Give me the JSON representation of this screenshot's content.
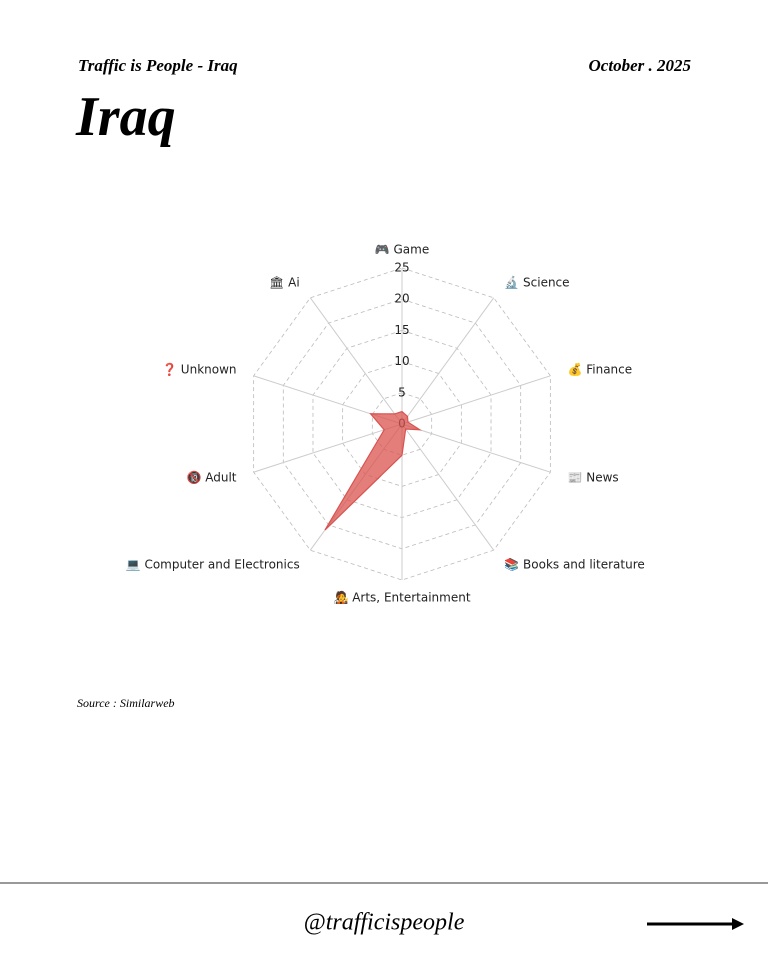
{
  "header": {
    "left": "Traffic is People - Iraq",
    "right": "October . 2025",
    "title": "Iraq"
  },
  "chart_data": {
    "type": "radar",
    "categories": [
      "🎮 Game",
      "🔬 Science",
      "💰 Finance",
      "📰 News",
      "📚 Books and literature",
      "🧑‍🎤 Arts, Entertainment",
      "💻 Computer and Electronics",
      "🔞 Adult",
      "❓ Unknown",
      "🏛 Ai"
    ],
    "series": [
      {
        "color": "#d9534f",
        "values": [
          2,
          1.5,
          1,
          3,
          1,
          5,
          21,
          3,
          5.3,
          2
        ]
      }
    ],
    "ylim": [
      0,
      25
    ],
    "yticks": [
      0,
      5,
      10,
      15,
      20,
      25
    ],
    "grid": true
  },
  "source": "Source : Similarweb",
  "footer": {
    "handle": "@trafficispeople"
  }
}
